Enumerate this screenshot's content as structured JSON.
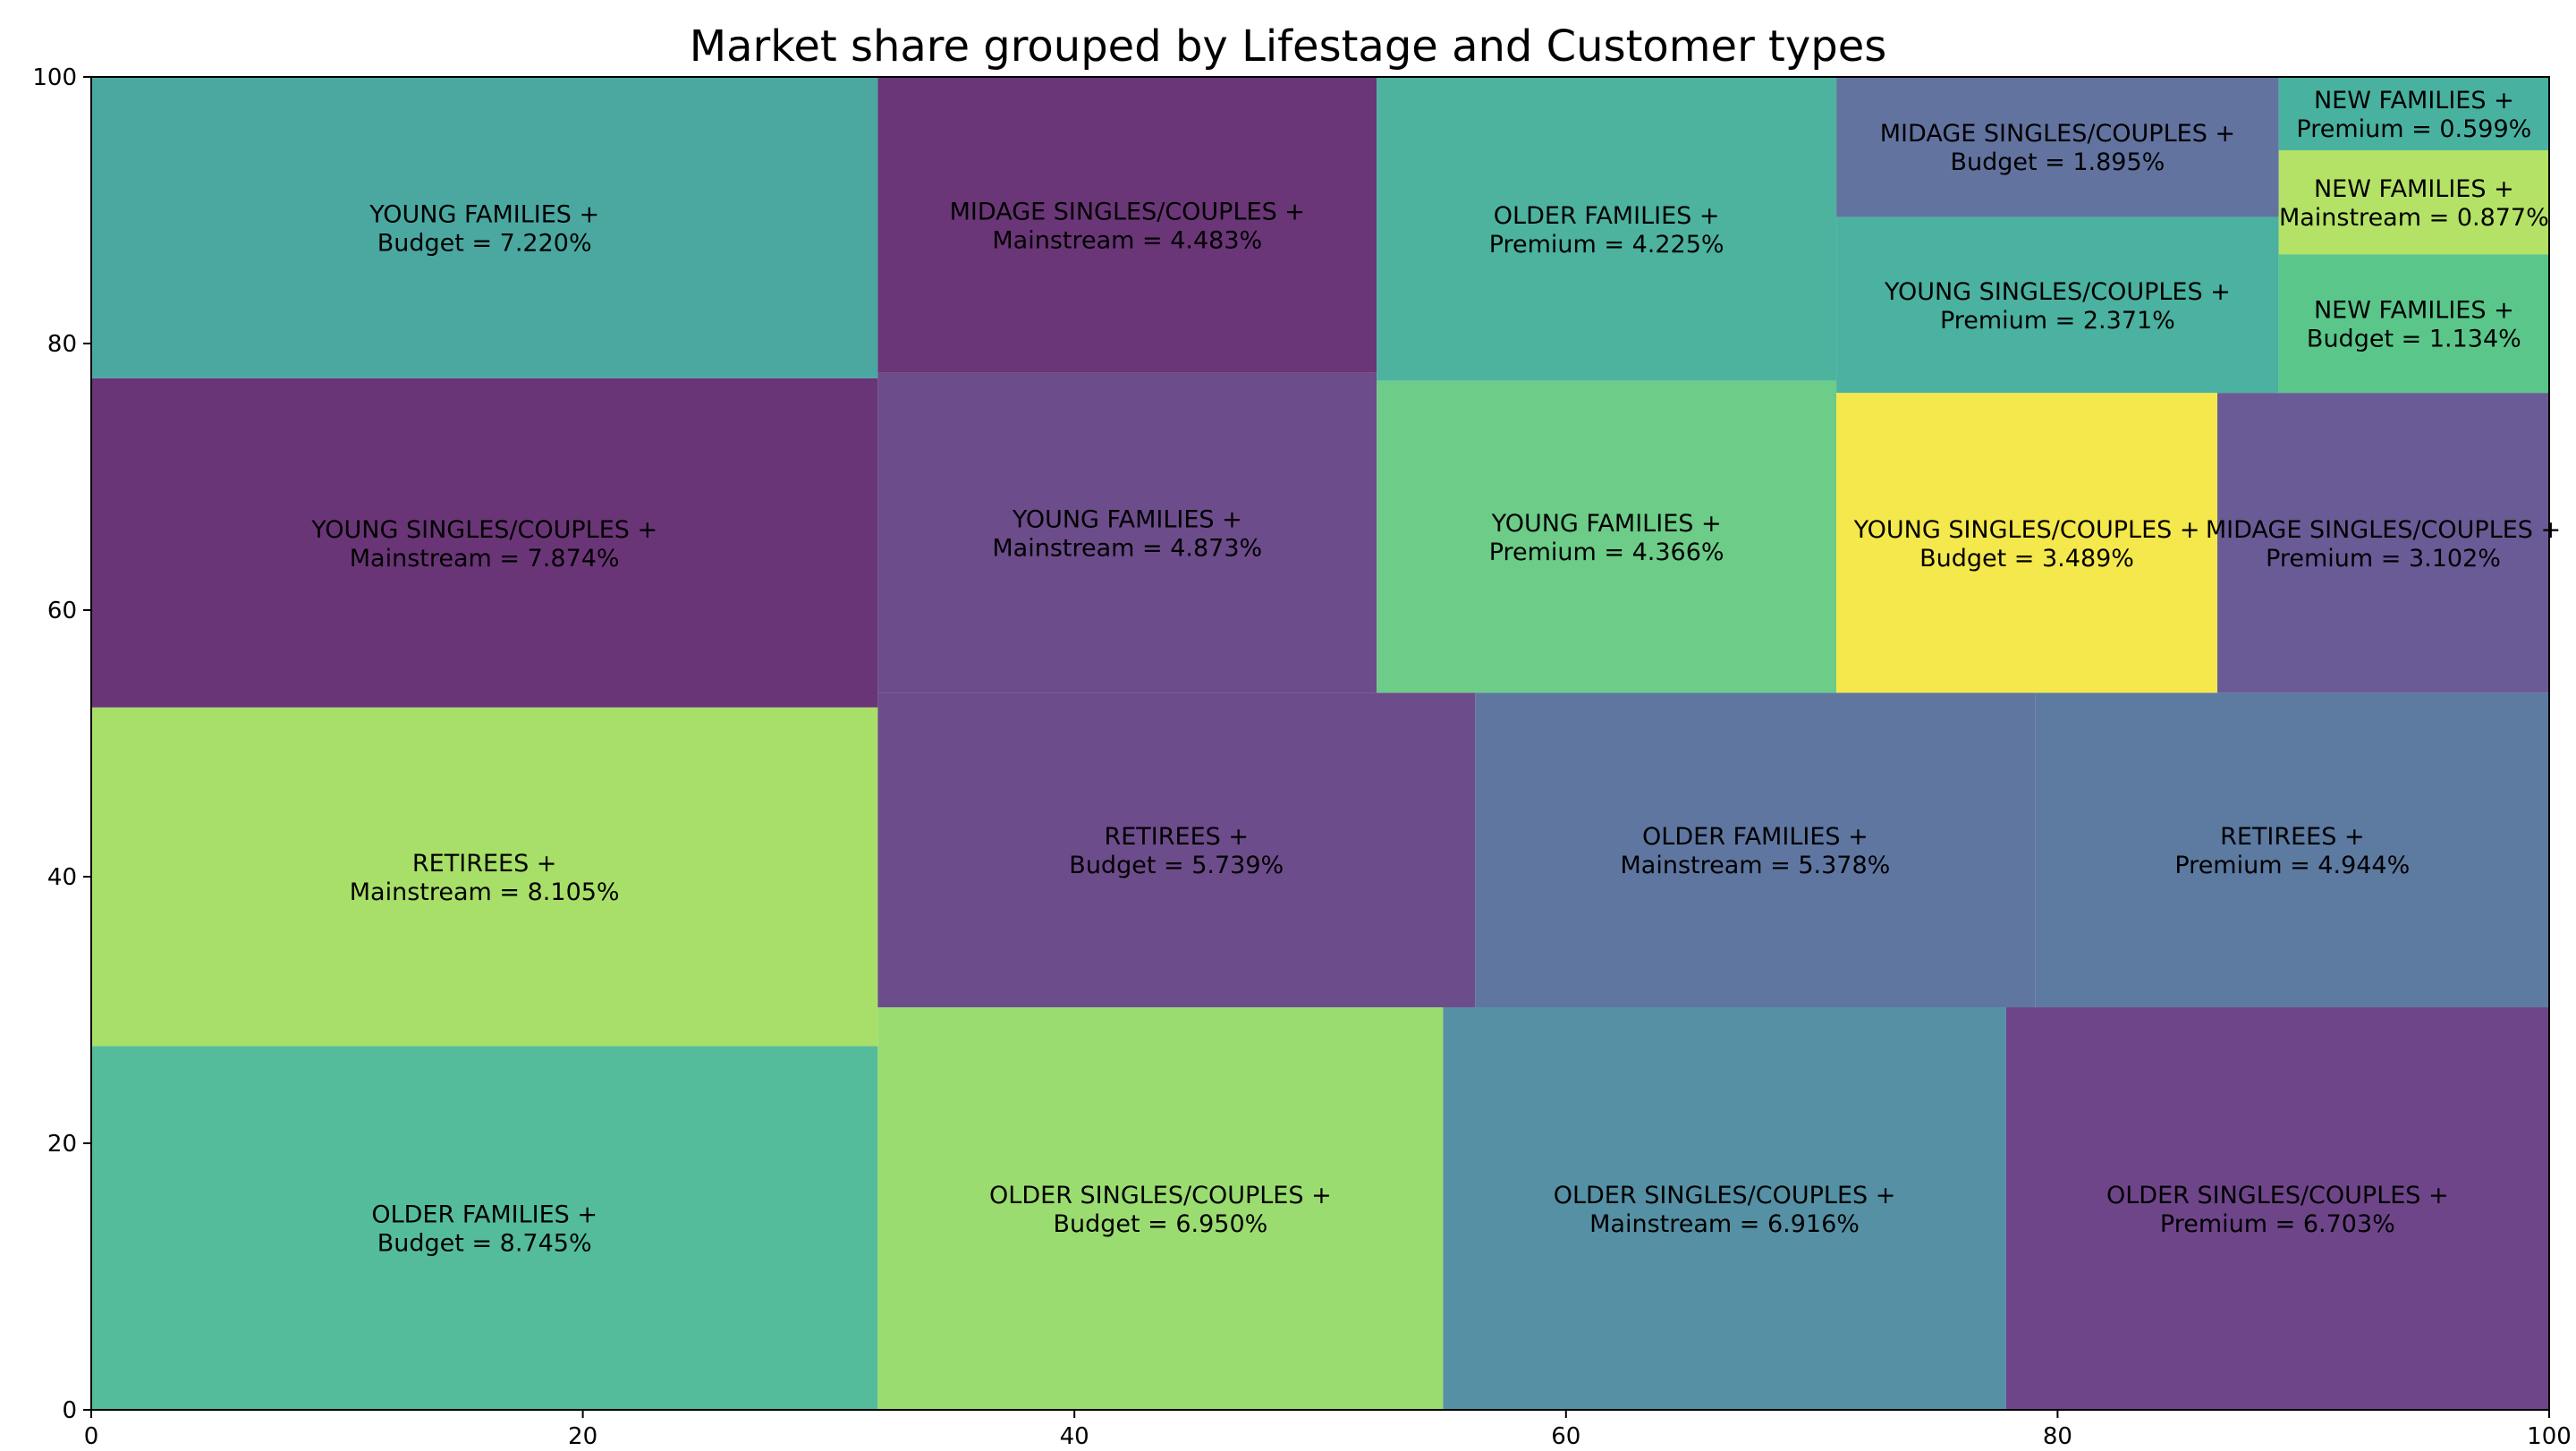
{
  "chart_data": {
    "type": "treemap",
    "title": "Market share grouped by Lifestage and Customer types",
    "xlim": [
      0,
      100
    ],
    "ylim": [
      0,
      100
    ],
    "x_ticks": [
      "0",
      "20",
      "40",
      "60",
      "80",
      "100"
    ],
    "y_ticks": [
      "0",
      "20",
      "40",
      "60",
      "80",
      "100"
    ],
    "grid": false,
    "cells": [
      {
        "line1": "OLDER FAMILIES +",
        "line2": "Budget = 8.745%",
        "value": 8.745,
        "x0": 0.0,
        "y0": 0.0,
        "x1": 32.0,
        "y1": 27.3,
        "color": "#55bc9b"
      },
      {
        "line1": "RETIREES +",
        "line2": "Mainstream = 8.105%",
        "value": 8.105,
        "x0": 0.0,
        "y0": 27.3,
        "x1": 32.0,
        "y1": 52.7,
        "color": "#a8df69"
      },
      {
        "line1": "YOUNG SINGLES/COUPLES +",
        "line2": "Mainstream = 7.874%",
        "value": 7.874,
        "x0": 0.0,
        "y0": 52.7,
        "x1": 32.0,
        "y1": 77.4,
        "color": "#6a3577"
      },
      {
        "line1": "YOUNG FAMILIES +",
        "line2": "Budget = 7.220%",
        "value": 7.22,
        "x0": 0.0,
        "y0": 77.4,
        "x1": 32.0,
        "y1": 100.0,
        "color": "#4aa8a1"
      },
      {
        "line1": "OLDER SINGLES/COUPLES +",
        "line2": "Budget = 6.950%",
        "value": 6.95,
        "x0": 32.0,
        "y0": 0.0,
        "x1": 55.0,
        "y1": 30.2,
        "color": "#9bdc71"
      },
      {
        "line1": "OLDER SINGLES/COUPLES +",
        "line2": "Mainstream = 6.916%",
        "value": 6.916,
        "x0": 55.0,
        "y0": 0.0,
        "x1": 77.9,
        "y1": 30.2,
        "color": "#5590a4"
      },
      {
        "line1": "OLDER SINGLES/COUPLES +",
        "line2": "Premium = 6.703%",
        "value": 6.703,
        "x0": 77.9,
        "y0": 0.0,
        "x1": 100.0,
        "y1": 30.2,
        "color": "#6e4589"
      },
      {
        "line1": "RETIREES +",
        "line2": "Budget = 5.739%",
        "value": 5.739,
        "x0": 32.0,
        "y0": 30.2,
        "x1": 56.3,
        "y1": 53.8,
        "color": "#6d4c8b"
      },
      {
        "line1": "OLDER FAMILIES +",
        "line2": "Mainstream = 5.378%",
        "value": 5.378,
        "x0": 56.3,
        "y0": 30.2,
        "x1": 79.1,
        "y1": 53.8,
        "color": "#5f76a1"
      },
      {
        "line1": "RETIREES +",
        "line2": "Premium = 4.944%",
        "value": 4.944,
        "x0": 79.1,
        "y0": 30.2,
        "x1": 100.0,
        "y1": 53.8,
        "color": "#5d7aa1"
      },
      {
        "line1": "YOUNG FAMILIES +",
        "line2": "Mainstream = 4.873%",
        "value": 4.873,
        "x0": 32.0,
        "y0": 53.8,
        "x1": 52.3,
        "y1": 77.8,
        "color": "#6c4c8a"
      },
      {
        "line1": "MIDAGE SINGLES/COUPLES +",
        "line2": "Mainstream = 4.483%",
        "value": 4.483,
        "x0": 32.0,
        "y0": 77.8,
        "x1": 52.3,
        "y1": 100.0,
        "color": "#6a3677"
      },
      {
        "line1": "YOUNG FAMILIES +",
        "line2": "Premium = 4.366%",
        "value": 4.366,
        "x0": 52.3,
        "y0": 53.8,
        "x1": 71.0,
        "y1": 77.2,
        "color": "#6ccc88"
      },
      {
        "line1": "OLDER FAMILIES +",
        "line2": "Premium = 4.225%",
        "value": 4.225,
        "x0": 52.3,
        "y0": 77.2,
        "x1": 71.0,
        "y1": 100.0,
        "color": "#4db39f"
      },
      {
        "line1": "YOUNG SINGLES/COUPLES +",
        "line2": "Budget = 3.489%",
        "value": 3.489,
        "x0": 71.0,
        "y0": 53.8,
        "x1": 86.5,
        "y1": 76.3,
        "color": "#f5e84c"
      },
      {
        "line1": "MIDAGE SINGLES/COUPLES +",
        "line2": "Premium = 3.102%",
        "value": 3.102,
        "x0": 86.5,
        "y0": 53.8,
        "x1": 100.0,
        "y1": 76.3,
        "color": "#6a5b97"
      },
      {
        "line1": "YOUNG SINGLES/COUPLES +",
        "line2": "Premium = 2.371%",
        "value": 2.371,
        "x0": 71.0,
        "y0": 76.3,
        "x1": 89.0,
        "y1": 89.5,
        "color": "#4bb1a0"
      },
      {
        "line1": "MIDAGE SINGLES/COUPLES +",
        "line2": "Budget = 1.895%",
        "value": 1.895,
        "x0": 71.0,
        "y0": 89.5,
        "x1": 89.0,
        "y1": 100.0,
        "color": "#6373a0"
      },
      {
        "line1": "NEW FAMILIES +",
        "line2": "Budget = 1.134%",
        "value": 1.134,
        "x0": 89.0,
        "y0": 76.3,
        "x1": 100.0,
        "y1": 86.7,
        "color": "#5ac68a"
      },
      {
        "line1": "NEW FAMILIES +",
        "line2": "Mainstream = 0.877%",
        "value": 0.877,
        "x0": 89.0,
        "y0": 86.7,
        "x1": 100.0,
        "y1": 94.5,
        "color": "#b4e266"
      },
      {
        "line1": "NEW FAMILIES +",
        "line2": "Premium = 0.599%",
        "value": 0.599,
        "x0": 89.0,
        "y0": 94.5,
        "x1": 100.0,
        "y1": 100.0,
        "color": "#48b1a0"
      }
    ]
  }
}
